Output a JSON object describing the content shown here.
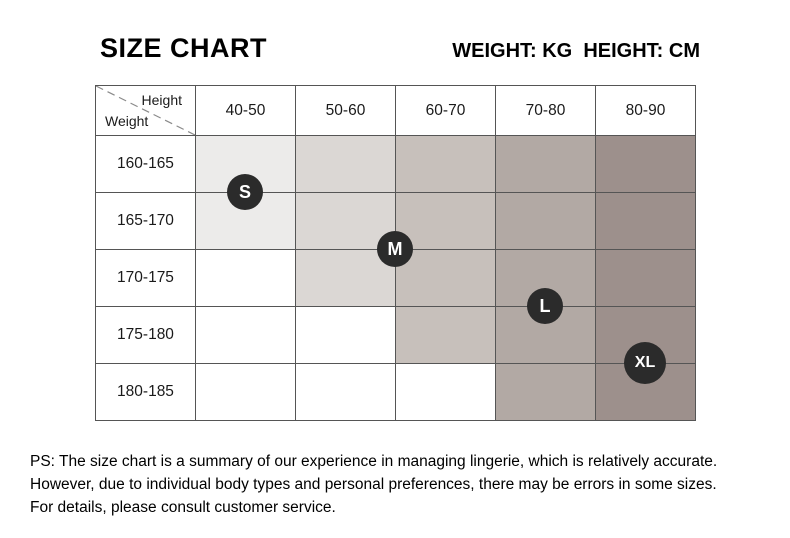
{
  "chart_data": {
    "type": "table",
    "title": "SIZE CHART",
    "units_label": "WEIGHT: KG  HEIGHT: CM",
    "corner": {
      "top": "Height",
      "bottom": "Weight"
    },
    "columns_weight_kg": [
      "40-50",
      "50-60",
      "60-70",
      "70-80",
      "80-90"
    ],
    "rows_height_cm": [
      "160-165",
      "165-170",
      "170-175",
      "175-180",
      "180-185"
    ],
    "column_shading": [
      {
        "color": "#ECEBEA",
        "shaded_rows": 2
      },
      {
        "color": "#DBD7D4",
        "shaded_rows": 3
      },
      {
        "color": "#C7C0BB",
        "shaded_rows": 4
      },
      {
        "color": "#B2A9A4",
        "shaded_rows": 5
      },
      {
        "color": "#9D908C",
        "shaded_rows": 5
      }
    ],
    "badges": [
      {
        "label": "S",
        "col": 0.5,
        "row": 1
      },
      {
        "label": "M",
        "col": 2,
        "row": 2
      },
      {
        "label": "L",
        "col": 3.5,
        "row": 3
      },
      {
        "label": "XL",
        "col": 4.5,
        "row": 4
      }
    ],
    "colors": {
      "badge": "#2B2B2B",
      "grid_line": "#555555"
    }
  },
  "footnote": {
    "lines": [
      "PS: The size chart is a summary of our experience in managing lingerie, which is relatively accurate.",
      "However, due to individual body types and personal preferences, there may be errors in some sizes.",
      "For details, please consult customer service."
    ]
  }
}
